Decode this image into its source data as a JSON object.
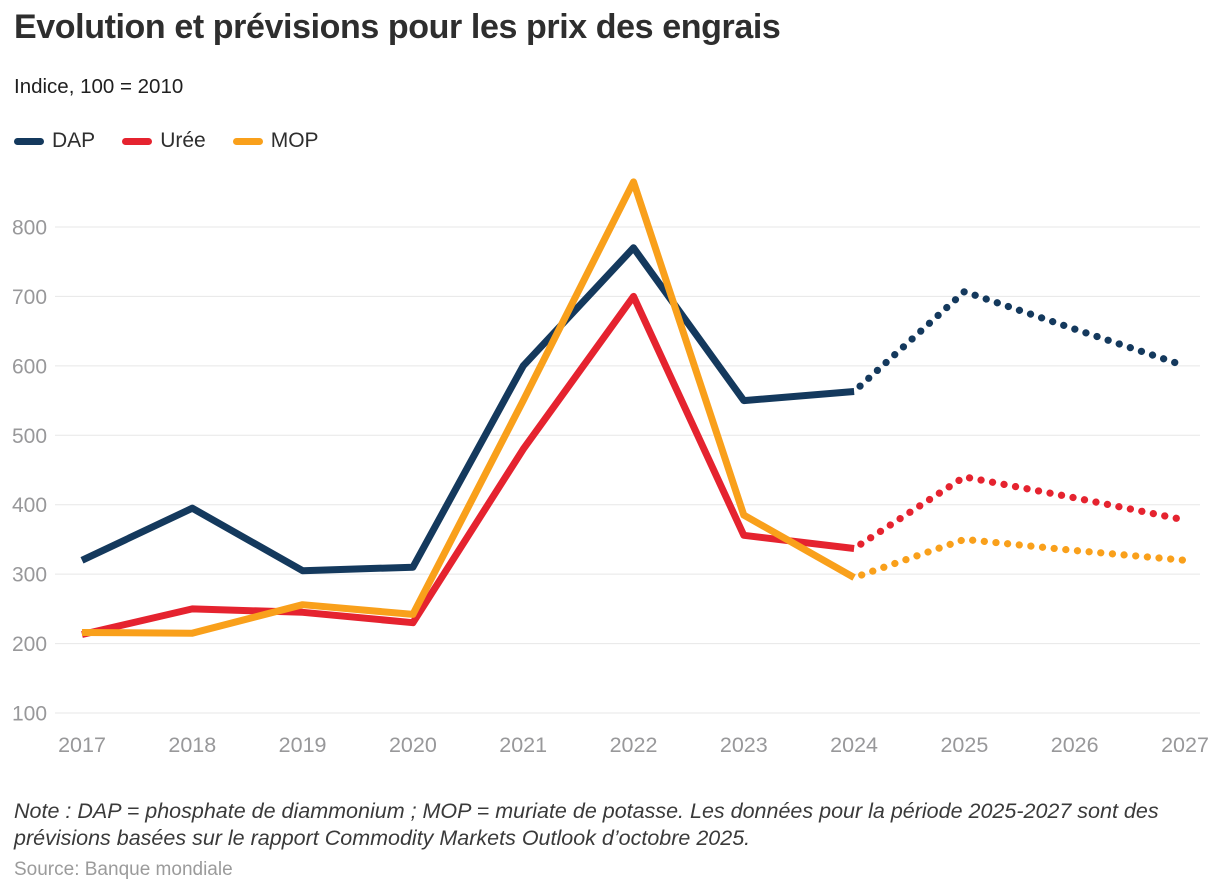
{
  "title": "Evolution et prévisions pour les prix des engrais",
  "subtitle": "Indice, 100 = 2010",
  "legend": [
    {
      "label": "DAP",
      "color": "#14395D"
    },
    {
      "label": "Urée",
      "color": "#E5232F"
    },
    {
      "label": "MOP",
      "color": "#F9A01B"
    }
  ],
  "note": "Note : DAP = phosphate de diammonium ; MOP = muriate de potasse. Les données pour la période 2025-2027 sont des prévisions basées sur le rapport Commodity Markets Outlook d’octobre 2025.",
  "source": "Source: Banque mondiale",
  "chart_data": {
    "type": "line",
    "title": "Evolution et prévisions pour les prix des engrais",
    "subtitle": "Indice, 100 = 2010",
    "x": [
      2017,
      2018,
      2019,
      2020,
      2021,
      2022,
      2023,
      2024,
      2025,
      2026,
      2027
    ],
    "series": [
      {
        "name": "DAP",
        "color": "#14395D",
        "values": [
          320,
          395,
          305,
          310,
          600,
          770,
          550,
          563,
          707,
          653,
          600
        ]
      },
      {
        "name": "Urée",
        "color": "#E5232F",
        "values": [
          213,
          250,
          245,
          230,
          480,
          700,
          356,
          337,
          440,
          410,
          378
        ]
      },
      {
        "name": "MOP",
        "color": "#F9A01B",
        "values": [
          216,
          215,
          256,
          242,
          550,
          865,
          385,
          295,
          350,
          334,
          320
        ]
      }
    ],
    "forecast_start_year": 2024,
    "forecast_style": "dotted",
    "ylim": [
      100,
      870
    ],
    "yticks": [
      100,
      200,
      300,
      400,
      500,
      600,
      700,
      800
    ],
    "grid": true,
    "gridline_color": "#e7e7e7",
    "axis_label_color": "#98989a",
    "legend_position": "top"
  }
}
